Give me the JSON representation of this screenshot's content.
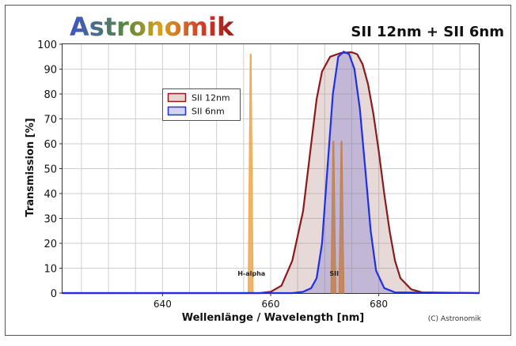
{
  "chart_data": {
    "type": "line",
    "brand": "Astronomik",
    "title": "SII 12nm + SII 6nm",
    "xlabel": "Wellenlänge / Wavelength [nm]",
    "ylabel": "Transmission [%]",
    "copyright": "(C) Astronomik",
    "xlim": [
      621.5,
      698.5
    ],
    "ylim": [
      0,
      100
    ],
    "x_ticks": [
      640,
      660,
      680
    ],
    "y_ticks": [
      0,
      10,
      20,
      30,
      40,
      50,
      60,
      70,
      80,
      90,
      100
    ],
    "grid": true,
    "legend_position": "upper-left",
    "series": [
      {
        "name": "SII 12nm",
        "color": "#8b1a1a",
        "fill": "rgba(170,120,110,0.28)",
        "x": [
          621.5,
          658,
          660,
          662,
          664,
          666,
          667.5,
          668.5,
          669.5,
          671,
          673,
          675,
          676,
          677,
          678,
          679,
          680,
          681,
          682,
          683,
          684,
          686,
          688,
          698.5
        ],
        "y": [
          0,
          0,
          0.5,
          3,
          13,
          33,
          60,
          78,
          89,
          95,
          96.5,
          96.8,
          96,
          92,
          84,
          72,
          57,
          40,
          25,
          13,
          6,
          1.5,
          0.3,
          0
        ]
      },
      {
        "name": "SII 6nm",
        "color": "#1f2fe6",
        "fill": "rgba(110,110,210,0.30)",
        "x": [
          621.5,
          664,
          666,
          667.5,
          668.5,
          669.5,
          670.5,
          671.5,
          672.5,
          673.5,
          674.5,
          675.5,
          676.5,
          677.5,
          678.5,
          679.5,
          681,
          683,
          698.5
        ],
        "y": [
          0,
          0,
          0.5,
          2,
          6,
          20,
          50,
          80,
          95,
          97,
          96,
          90,
          74,
          50,
          25,
          9,
          2,
          0.3,
          0
        ]
      }
    ],
    "emission_lines": [
      {
        "label": "H-alpha",
        "center": 656.3,
        "peak": 96,
        "color": "#f0a64a"
      },
      {
        "label": "SII",
        "center": 671.6,
        "peak": 61,
        "color": "#c08050"
      },
      {
        "label": "SII",
        "center": 673.1,
        "peak": 61,
        "color": "#c08050"
      }
    ]
  }
}
